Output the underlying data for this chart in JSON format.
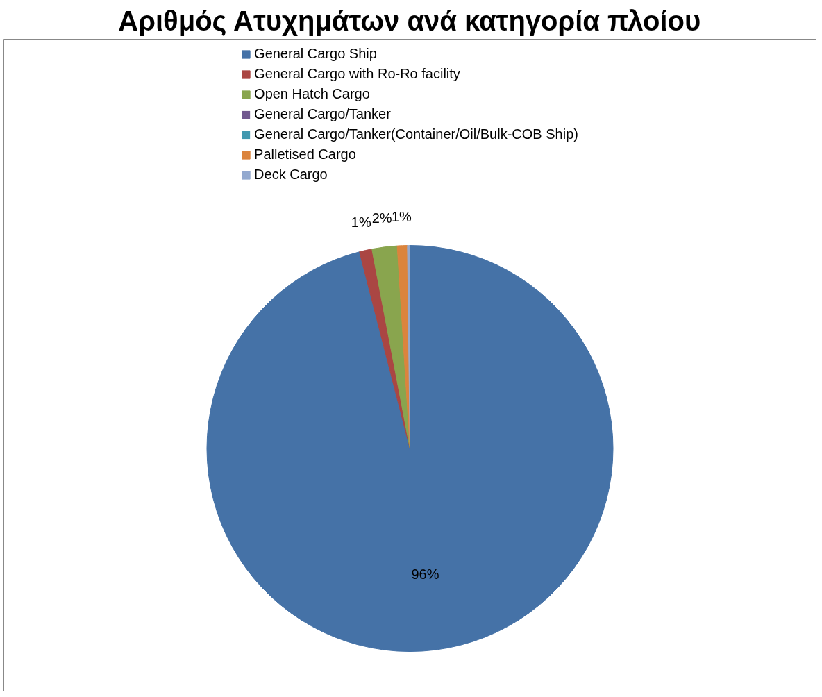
{
  "chart_data": {
    "type": "pie",
    "title": "Αριθμός Ατυχημάτων ανά κατηγορία πλοίου",
    "categories": [
      "General Cargo Ship",
      "General Cargo with Ro-Ro facility",
      "Open Hatch Cargo",
      "General Cargo/Tanker",
      "General Cargo/Tanker(Container/Oil/Bulk-COB Ship)",
      "Palletised Cargo",
      "Deck Cargo"
    ],
    "values": [
      96,
      1,
      2,
      0,
      0,
      0.8,
      0.2
    ],
    "value_labels": [
      "96%",
      "1%",
      "2%",
      null,
      null,
      "1%",
      null
    ],
    "colors": [
      "#4572a7",
      "#aa4643",
      "#89a54e",
      "#71588f",
      "#4198af",
      "#db843d",
      "#93a9cf"
    ],
    "legend": "top"
  }
}
